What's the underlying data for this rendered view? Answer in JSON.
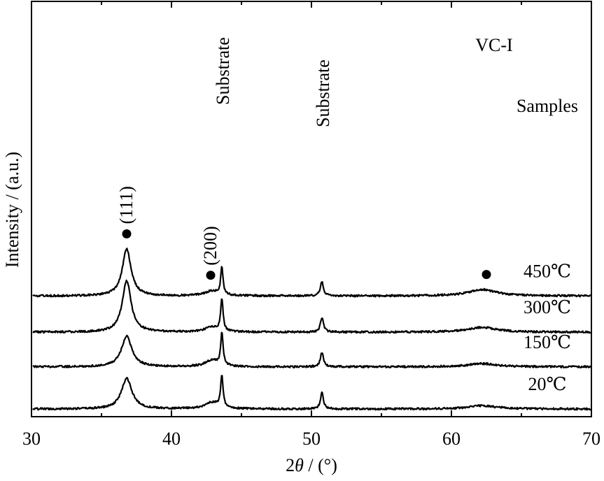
{
  "chart_data": {
    "type": "line",
    "title": "VC-I",
    "xlabel_prefix": "2",
    "xlabel_symbol": "θ",
    "xlabel_suffix": " / (°)",
    "ylabel": "Intensity / (a.u.)",
    "xlim": [
      30,
      70
    ],
    "x_ticks": [
      30,
      40,
      50,
      60,
      70
    ],
    "x_tick_labels": [
      "30",
      "40",
      "50",
      "60",
      "70"
    ],
    "legend_title": "Samples",
    "series": [
      {
        "name": "20℃",
        "baseline": 0.0,
        "noise": 0.006,
        "peaks": [
          {
            "x": 36.8,
            "h": 0.19,
            "w": 0.45
          },
          {
            "x": 42.9,
            "h": 0.04,
            "w": 0.6
          },
          {
            "x": 43.6,
            "h": 0.2,
            "w": 0.1
          },
          {
            "x": 50.75,
            "h": 0.1,
            "w": 0.13
          },
          {
            "x": 62.2,
            "h": 0.02,
            "w": 1.2
          }
        ]
      },
      {
        "name": "150℃",
        "baseline": 0.262,
        "noise": 0.006,
        "peaks": [
          {
            "x": 36.8,
            "h": 0.19,
            "w": 0.45
          },
          {
            "x": 42.9,
            "h": 0.04,
            "w": 0.6
          },
          {
            "x": 43.6,
            "h": 0.2,
            "w": 0.1
          },
          {
            "x": 50.75,
            "h": 0.09,
            "w": 0.13
          },
          {
            "x": 62.2,
            "h": 0.02,
            "w": 1.2
          }
        ]
      },
      {
        "name": "300℃",
        "baseline": 0.478,
        "noise": 0.006,
        "peaks": [
          {
            "x": 36.8,
            "h": 0.32,
            "w": 0.38
          },
          {
            "x": 42.9,
            "h": 0.03,
            "w": 0.6
          },
          {
            "x": 43.6,
            "h": 0.2,
            "w": 0.1
          },
          {
            "x": 50.75,
            "h": 0.09,
            "w": 0.13
          },
          {
            "x": 62.2,
            "h": 0.03,
            "w": 1.2
          }
        ]
      },
      {
        "name": "450℃",
        "baseline": 0.703,
        "noise": 0.006,
        "peaks": [
          {
            "x": 36.8,
            "h": 0.29,
            "w": 0.38
          },
          {
            "x": 42.9,
            "h": 0.03,
            "w": 0.6
          },
          {
            "x": 43.6,
            "h": 0.17,
            "w": 0.1
          },
          {
            "x": 50.75,
            "h": 0.09,
            "w": 0.13
          },
          {
            "x": 62.2,
            "h": 0.04,
            "w": 1.2
          }
        ]
      }
    ],
    "peak_markers": [
      {
        "label": "(111)",
        "x": 36.8
      },
      {
        "label": "(200)",
        "x": 42.8
      },
      {
        "label": "",
        "x": 62.5
      }
    ],
    "substrate_labels": [
      {
        "label": "Substrate",
        "x": 43.6
      },
      {
        "label": "Substrate",
        "x": 50.75
      }
    ]
  }
}
